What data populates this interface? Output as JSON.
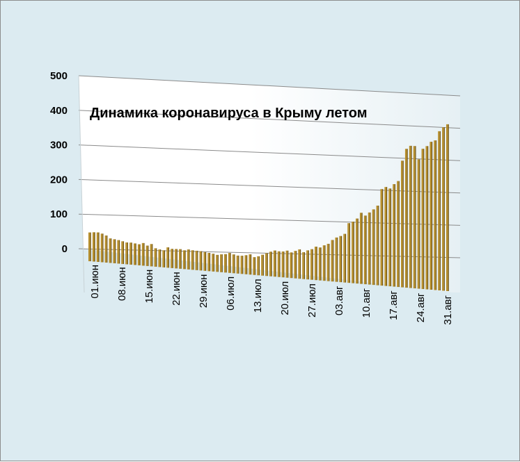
{
  "chart_data": {
    "type": "bar",
    "title": "Динамика  коронавируса в Крыму летом",
    "xlabel": "",
    "ylabel": "",
    "ylim": [
      0,
      500
    ],
    "yticks": [
      "0",
      "100",
      "200",
      "300",
      "400",
      "500"
    ],
    "grid": true,
    "legend": "none",
    "x_tick_labels": [
      "01.июн",
      "08.июн",
      "15.июн",
      "22.июн",
      "29.июн",
      "06.июл",
      "13.июл",
      "20.июл",
      "27.июл",
      "03.авг",
      "10.авг",
      "17.авг",
      "24.авг",
      "31.авг"
    ],
    "values": [
      47,
      48,
      48,
      45,
      40,
      32,
      30,
      28,
      25,
      22,
      22,
      20,
      18,
      22,
      15,
      20,
      8,
      5,
      3,
      12,
      8,
      8,
      8,
      5,
      8,
      6,
      5,
      4,
      2,
      0,
      -2,
      -5,
      -3,
      -2,
      2,
      -2,
      -5,
      -5,
      -3,
      0,
      -8,
      -5,
      0,
      5,
      10,
      14,
      12,
      12,
      15,
      10,
      15,
      20,
      12,
      18,
      22,
      30,
      28,
      35,
      40,
      52,
      60,
      65,
      72,
      105,
      110,
      120,
      138,
      130,
      140,
      150,
      162,
      213,
      220,
      216,
      230,
      240,
      303,
      340,
      350,
      350,
      310,
      343,
      352,
      366,
      371,
      400,
      413,
      423
    ],
    "bar_color": "#b8902e",
    "grid_color": "#8a8a8a",
    "background": "#dcebf1",
    "plot_fill": "#ffffff"
  }
}
